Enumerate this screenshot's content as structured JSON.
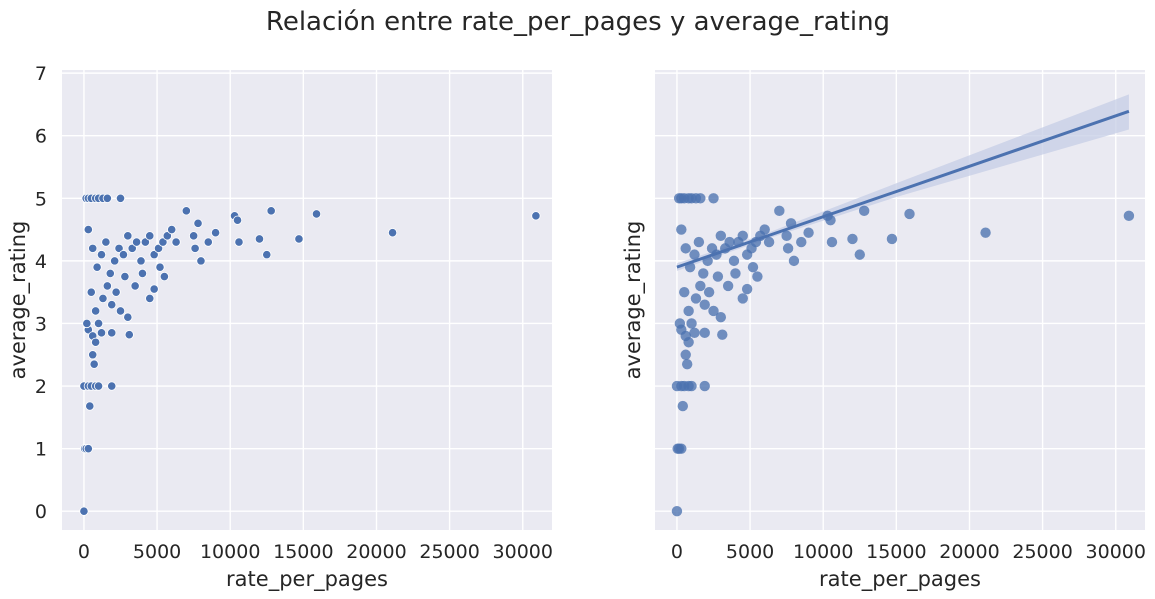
{
  "figure": {
    "title": "Relación entre rate_per_pages y average_rating"
  },
  "colors": {
    "background": "#eaeaf2",
    "grid": "#ffffff",
    "series": "#4c72b0",
    "ci_band": "#c5cde6",
    "text": "#262626"
  },
  "chart_data": [
    {
      "type": "scatter",
      "xlabel": "rate_per_pages",
      "ylabel": "average_rating",
      "xlim": [
        -1500,
        32000
      ],
      "ylim": [
        -0.3,
        7.05
      ],
      "xticks": [
        0,
        5000,
        10000,
        15000,
        20000,
        25000,
        30000
      ],
      "yticks": [
        0,
        1,
        2,
        3,
        4,
        5,
        6,
        7
      ],
      "grid": true,
      "marker_style": "filled with white edge",
      "series": [
        {
          "points": [
            [
              0,
              0
            ],
            [
              50,
              1.0
            ],
            [
              150,
              1.0
            ],
            [
              300,
              1.0
            ],
            [
              0,
              2.0
            ],
            [
              300,
              2.0
            ],
            [
              500,
              2.0
            ],
            [
              800,
              2.0
            ],
            [
              1000,
              2.0
            ],
            [
              1900,
              2.0
            ],
            [
              400,
              1.68
            ],
            [
              700,
              2.35
            ],
            [
              600,
              2.5
            ],
            [
              150,
              5.0
            ],
            [
              300,
              5.0
            ],
            [
              500,
              5.0
            ],
            [
              800,
              5.0
            ],
            [
              1000,
              5.0
            ],
            [
              1300,
              5.0
            ],
            [
              1600,
              5.0
            ],
            [
              2500,
              5.0
            ],
            [
              300,
              4.5
            ],
            [
              600,
              4.2
            ],
            [
              900,
              3.9
            ],
            [
              1200,
              4.1
            ],
            [
              1500,
              4.3
            ],
            [
              1800,
              3.8
            ],
            [
              2100,
              4.0
            ],
            [
              2400,
              4.2
            ],
            [
              2700,
              4.1
            ],
            [
              3000,
              4.4
            ],
            [
              3300,
              4.2
            ],
            [
              3600,
              4.3
            ],
            [
              3900,
              4.0
            ],
            [
              4200,
              4.3
            ],
            [
              4500,
              4.4
            ],
            [
              4800,
              4.1
            ],
            [
              5100,
              4.2
            ],
            [
              5400,
              4.3
            ],
            [
              5700,
              4.4
            ],
            [
              6000,
              4.5
            ],
            [
              6300,
              4.3
            ],
            [
              500,
              3.5
            ],
            [
              800,
              3.2
            ],
            [
              1000,
              3.0
            ],
            [
              1300,
              3.4
            ],
            [
              1600,
              3.6
            ],
            [
              1900,
              3.3
            ],
            [
              2200,
              3.5
            ],
            [
              2500,
              3.2
            ],
            [
              300,
              2.9
            ],
            [
              600,
              2.8
            ],
            [
              800,
              2.7
            ],
            [
              200,
              3.0
            ],
            [
              1200,
              2.85
            ],
            [
              1900,
              2.85
            ],
            [
              3100,
              2.82
            ],
            [
              3000,
              3.1
            ],
            [
              4500,
              3.4
            ],
            [
              4800,
              3.55
            ],
            [
              3500,
              3.6
            ],
            [
              2800,
              3.75
            ],
            [
              4000,
              3.8
            ],
            [
              5200,
              3.9
            ],
            [
              5500,
              3.75
            ],
            [
              7000,
              4.8
            ],
            [
              7500,
              4.4
            ],
            [
              7600,
              4.2
            ],
            [
              7800,
              4.6
            ],
            [
              8000,
              4.0
            ],
            [
              8500,
              4.3
            ],
            [
              9000,
              4.45
            ],
            [
              10300,
              4.72
            ],
            [
              10500,
              4.65
            ],
            [
              10600,
              4.3
            ],
            [
              12000,
              4.35
            ],
            [
              12500,
              4.1
            ],
            [
              12800,
              4.8
            ],
            [
              14700,
              4.35
            ],
            [
              15900,
              4.75
            ],
            [
              21100,
              4.45
            ],
            [
              30900,
              4.72
            ]
          ]
        }
      ]
    },
    {
      "type": "scatter",
      "xlabel": "rate_per_pages",
      "ylabel": "average_rating",
      "xlim": [
        -1500,
        32000
      ],
      "ylim": [
        -0.3,
        7.05
      ],
      "xticks": [
        0,
        5000,
        10000,
        15000,
        20000,
        25000,
        30000
      ],
      "yticks": [
        0,
        1,
        2,
        3,
        4,
        5,
        6,
        7
      ],
      "show_ytick_labels": false,
      "grid": true,
      "marker_style": "translucent filled",
      "series": [
        {
          "points": [
            [
              0,
              0
            ],
            [
              50,
              1.0
            ],
            [
              150,
              1.0
            ],
            [
              300,
              1.0
            ],
            [
              0,
              2.0
            ],
            [
              300,
              2.0
            ],
            [
              500,
              2.0
            ],
            [
              800,
              2.0
            ],
            [
              1000,
              2.0
            ],
            [
              1900,
              2.0
            ],
            [
              400,
              1.68
            ],
            [
              700,
              2.35
            ],
            [
              600,
              2.5
            ],
            [
              150,
              5.0
            ],
            [
              300,
              5.0
            ],
            [
              500,
              5.0
            ],
            [
              800,
              5.0
            ],
            [
              1000,
              5.0
            ],
            [
              1300,
              5.0
            ],
            [
              1600,
              5.0
            ],
            [
              2500,
              5.0
            ],
            [
              300,
              4.5
            ],
            [
              600,
              4.2
            ],
            [
              900,
              3.9
            ],
            [
              1200,
              4.1
            ],
            [
              1500,
              4.3
            ],
            [
              1800,
              3.8
            ],
            [
              2100,
              4.0
            ],
            [
              2400,
              4.2
            ],
            [
              2700,
              4.1
            ],
            [
              3000,
              4.4
            ],
            [
              3300,
              4.2
            ],
            [
              3600,
              4.3
            ],
            [
              3900,
              4.0
            ],
            [
              4200,
              4.3
            ],
            [
              4500,
              4.4
            ],
            [
              4800,
              4.1
            ],
            [
              5100,
              4.2
            ],
            [
              5400,
              4.3
            ],
            [
              5700,
              4.4
            ],
            [
              6000,
              4.5
            ],
            [
              6300,
              4.3
            ],
            [
              500,
              3.5
            ],
            [
              800,
              3.2
            ],
            [
              1000,
              3.0
            ],
            [
              1300,
              3.4
            ],
            [
              1600,
              3.6
            ],
            [
              1900,
              3.3
            ],
            [
              2200,
              3.5
            ],
            [
              2500,
              3.2
            ],
            [
              300,
              2.9
            ],
            [
              600,
              2.8
            ],
            [
              800,
              2.7
            ],
            [
              200,
              3.0
            ],
            [
              1200,
              2.85
            ],
            [
              1900,
              2.85
            ],
            [
              3100,
              2.82
            ],
            [
              3000,
              3.1
            ],
            [
              4500,
              3.4
            ],
            [
              4800,
              3.55
            ],
            [
              3500,
              3.6
            ],
            [
              2800,
              3.75
            ],
            [
              4000,
              3.8
            ],
            [
              5200,
              3.9
            ],
            [
              5500,
              3.75
            ],
            [
              7000,
              4.8
            ],
            [
              7500,
              4.4
            ],
            [
              7600,
              4.2
            ],
            [
              7800,
              4.6
            ],
            [
              8000,
              4.0
            ],
            [
              8500,
              4.3
            ],
            [
              9000,
              4.45
            ],
            [
              10300,
              4.72
            ],
            [
              10500,
              4.65
            ],
            [
              10600,
              4.3
            ],
            [
              12000,
              4.35
            ],
            [
              12500,
              4.1
            ],
            [
              12800,
              4.8
            ],
            [
              14700,
              4.35
            ],
            [
              15900,
              4.75
            ],
            [
              21100,
              4.45
            ],
            [
              30900,
              4.72
            ]
          ]
        }
      ],
      "regression_line": {
        "x": [
          0,
          30900
        ],
        "y": [
          3.9,
          6.39
        ]
      },
      "confidence_band": {
        "x": [
          0,
          6000,
          15000,
          30900
        ],
        "lower": [
          3.84,
          4.34,
          5.02,
          6.1
        ],
        "upper": [
          3.96,
          4.43,
          5.24,
          6.66
        ]
      }
    }
  ]
}
